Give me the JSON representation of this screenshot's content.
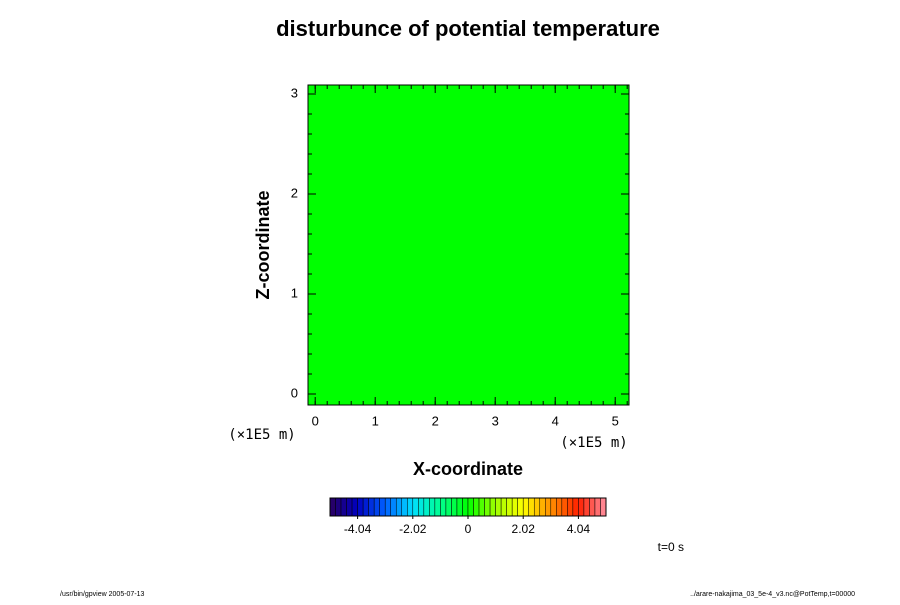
{
  "chart_data": {
    "type": "heatmap",
    "title": "disturbunce of potential temperature",
    "x_label": "X-coordinate",
    "y_label": "Z-coordinate",
    "x_unit": "(×1E5 m)",
    "y_unit": "(×1E5 m)",
    "xlim": [
      -0.12,
      5.23
    ],
    "xticks": [
      0,
      1,
      2,
      3,
      4,
      5
    ],
    "ylim": [
      -0.11,
      3.09
    ],
    "yticks": [
      0,
      1,
      2,
      3
    ],
    "field_value": 0,
    "colorbar": {
      "lim": [
        -5.05,
        5.05
      ],
      "ticks": [
        -4.04,
        -2.02,
        0,
        2.02,
        4.04
      ],
      "colors": [
        "#2a0060",
        "#0000c0",
        "#0060ff",
        "#00e0ff",
        "#00ff90",
        "#00ff00",
        "#a0ff00",
        "#ffff00",
        "#ff9000",
        "#ff2000",
        "#ff90a0"
      ]
    },
    "time_label": "t=0 s",
    "footer_left": "/usr/bin/gpview 2005-07-13",
    "footer_right": "../arare-nakajima_03_5e-4_v3.nc@PotTemp,t=00000"
  }
}
